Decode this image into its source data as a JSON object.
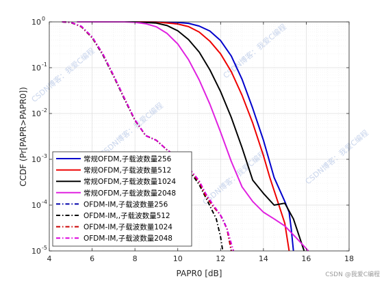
{
  "chart_data": {
    "type": "line",
    "title": "",
    "xlabel": "PAPR0 [dB]",
    "ylabel": "CCDF (Pr[PAPR>PAPR0])",
    "xlim": [
      4,
      18
    ],
    "ylim": [
      1e-05,
      1
    ],
    "yscale": "log",
    "grid": true,
    "minor_grid": true,
    "legend_location": "bottom-left",
    "x_ticks": [
      "4",
      "6",
      "8",
      "10",
      "12",
      "14",
      "16",
      "18"
    ],
    "y_tick_bases": [
      "10",
      "10",
      "10",
      "10",
      "10",
      "10"
    ],
    "y_tick_exps": [
      "-5",
      "-4",
      "-3",
      "-2",
      "-1",
      "0"
    ],
    "y_tick_values": [
      1e-05,
      0.0001,
      0.001,
      0.01,
      0.1,
      1
    ],
    "series": [
      {
        "name": "常规OFDM,子载波数量256",
        "color": "#0000cc",
        "style": "solid",
        "x": [
          5.3,
          8.0,
          9.0,
          10.0,
          10.5,
          11.0,
          11.5,
          12.0,
          12.5,
          13.0,
          13.5,
          14.0,
          14.5,
          15.0,
          15.2,
          15.3,
          15.4
        ],
        "y": [
          1,
          1,
          0.99,
          0.97,
          0.93,
          0.81,
          0.63,
          0.39,
          0.18,
          0.056,
          0.013,
          0.0026,
          0.0004,
          0.00012,
          7e-05,
          3e-05,
          1e-05
        ]
      },
      {
        "name": "常规OFDM,子载波数量512",
        "color": "#ee0000",
        "style": "solid",
        "x": [
          5.3,
          8.0,
          9.0,
          10.0,
          10.5,
          11.0,
          11.5,
          12.0,
          12.5,
          13.0,
          13.5,
          14.0,
          14.3,
          14.6,
          15.0,
          15.2
        ],
        "y": [
          1,
          1,
          0.99,
          0.9,
          0.79,
          0.6,
          0.38,
          0.2,
          0.082,
          0.025,
          0.0062,
          0.0012,
          0.0004,
          0.00015,
          4e-05,
          1e-05
        ]
      },
      {
        "name": "常规OFDM,子载波数量1024",
        "color": "#000000",
        "style": "solid",
        "x": [
          5.3,
          8.0,
          9.0,
          9.5,
          10.0,
          10.5,
          11.0,
          11.5,
          12.0,
          12.5,
          13.0,
          13.5,
          14.0,
          14.5,
          15.0,
          15.4,
          15.9
        ],
        "y": [
          1,
          1,
          0.94,
          0.83,
          0.64,
          0.41,
          0.22,
          0.09,
          0.03,
          0.0082,
          0.0018,
          0.00035,
          0.00018,
          0.0001,
          0.00011,
          5e-05,
          1e-05
        ]
      },
      {
        "name": "常规OFDM,子载波数量2048",
        "color": "#e020e0",
        "style": "solid",
        "x": [
          5.3,
          7.5,
          8.0,
          8.5,
          9.0,
          9.5,
          10.0,
          10.5,
          11.0,
          11.5,
          12.0,
          12.5,
          13.0,
          13.5,
          14.0,
          14.5,
          15.0,
          15.5,
          16.1
        ],
        "y": [
          1,
          1,
          0.98,
          0.91,
          0.78,
          0.56,
          0.33,
          0.15,
          0.054,
          0.016,
          0.0039,
          0.0009,
          0.00025,
          0.00012,
          7e-05,
          5e-05,
          3.5e-05,
          2e-05,
          1e-05
        ]
      },
      {
        "name": "OFDM-IM,子载波数量256",
        "color": "#0000aa",
        "style": "dashdot",
        "x": [
          4.6,
          5.0,
          5.5,
          6.0,
          6.5,
          7.0,
          7.5,
          8.0,
          8.5,
          9.0,
          9.5,
          10.0,
          10.5,
          11.0,
          11.3,
          11.6,
          11.9,
          12.1,
          12.3,
          12.5
        ],
        "y": [
          1,
          0.98,
          0.8,
          0.47,
          0.2,
          0.068,
          0.022,
          0.0073,
          0.0033,
          0.0026,
          0.0016,
          0.0011,
          0.00065,
          0.00033,
          0.00017,
          0.0001,
          7e-05,
          5e-05,
          3e-05,
          1e-05
        ]
      },
      {
        "name": "OFDM-IM,,子载波数量512",
        "color": "#000000",
        "style": "dashdot",
        "x": [
          4.6,
          5.0,
          5.5,
          6.0,
          6.5,
          7.0,
          7.5,
          8.0,
          8.5,
          9.0,
          9.5,
          10.0,
          10.5,
          11.0,
          11.4,
          11.8,
          12.0,
          12.1
        ],
        "y": [
          1,
          0.97,
          0.78,
          0.45,
          0.19,
          0.065,
          0.021,
          0.0071,
          0.0033,
          0.0026,
          0.0016,
          0.0011,
          0.0006,
          0.00028,
          0.00012,
          5e-05,
          2e-05,
          1e-05
        ]
      },
      {
        "name": "OFDM-IM,子载波数量1024",
        "color": "#cc0000",
        "style": "dashdot",
        "x": [
          4.6,
          5.0,
          5.5,
          6.0,
          6.5,
          7.0,
          7.5,
          8.0,
          8.5,
          9.0,
          9.5,
          10.0,
          10.5,
          11.0,
          11.3,
          11.6,
          12.0,
          12.3,
          12.5
        ],
        "y": [
          1,
          0.98,
          0.79,
          0.46,
          0.2,
          0.067,
          0.022,
          0.0072,
          0.0033,
          0.0026,
          0.0016,
          0.0011,
          0.00064,
          0.00032,
          0.00016,
          0.0001,
          6e-05,
          3e-05,
          1e-05
        ]
      },
      {
        "name": "OFDM-IM,子载波数量2048",
        "color": "#dd00dd",
        "style": "dashdot",
        "x": [
          4.6,
          5.0,
          5.5,
          6.0,
          6.5,
          7.0,
          7.5,
          8.0,
          8.5,
          9.0,
          9.5,
          10.0,
          10.5,
          11.0,
          11.3,
          11.6,
          12.0,
          12.3,
          12.6
        ],
        "y": [
          1,
          0.98,
          0.8,
          0.47,
          0.2,
          0.068,
          0.022,
          0.0073,
          0.0033,
          0.0026,
          0.0016,
          0.0011,
          0.00066,
          0.00034,
          0.00018,
          0.00011,
          6e-05,
          3e-05,
          1e-05
        ]
      }
    ]
  },
  "watermark": {
    "text": "CSDN博客：我爱C编程"
  },
  "credit": "CSDN @我爱C编程"
}
